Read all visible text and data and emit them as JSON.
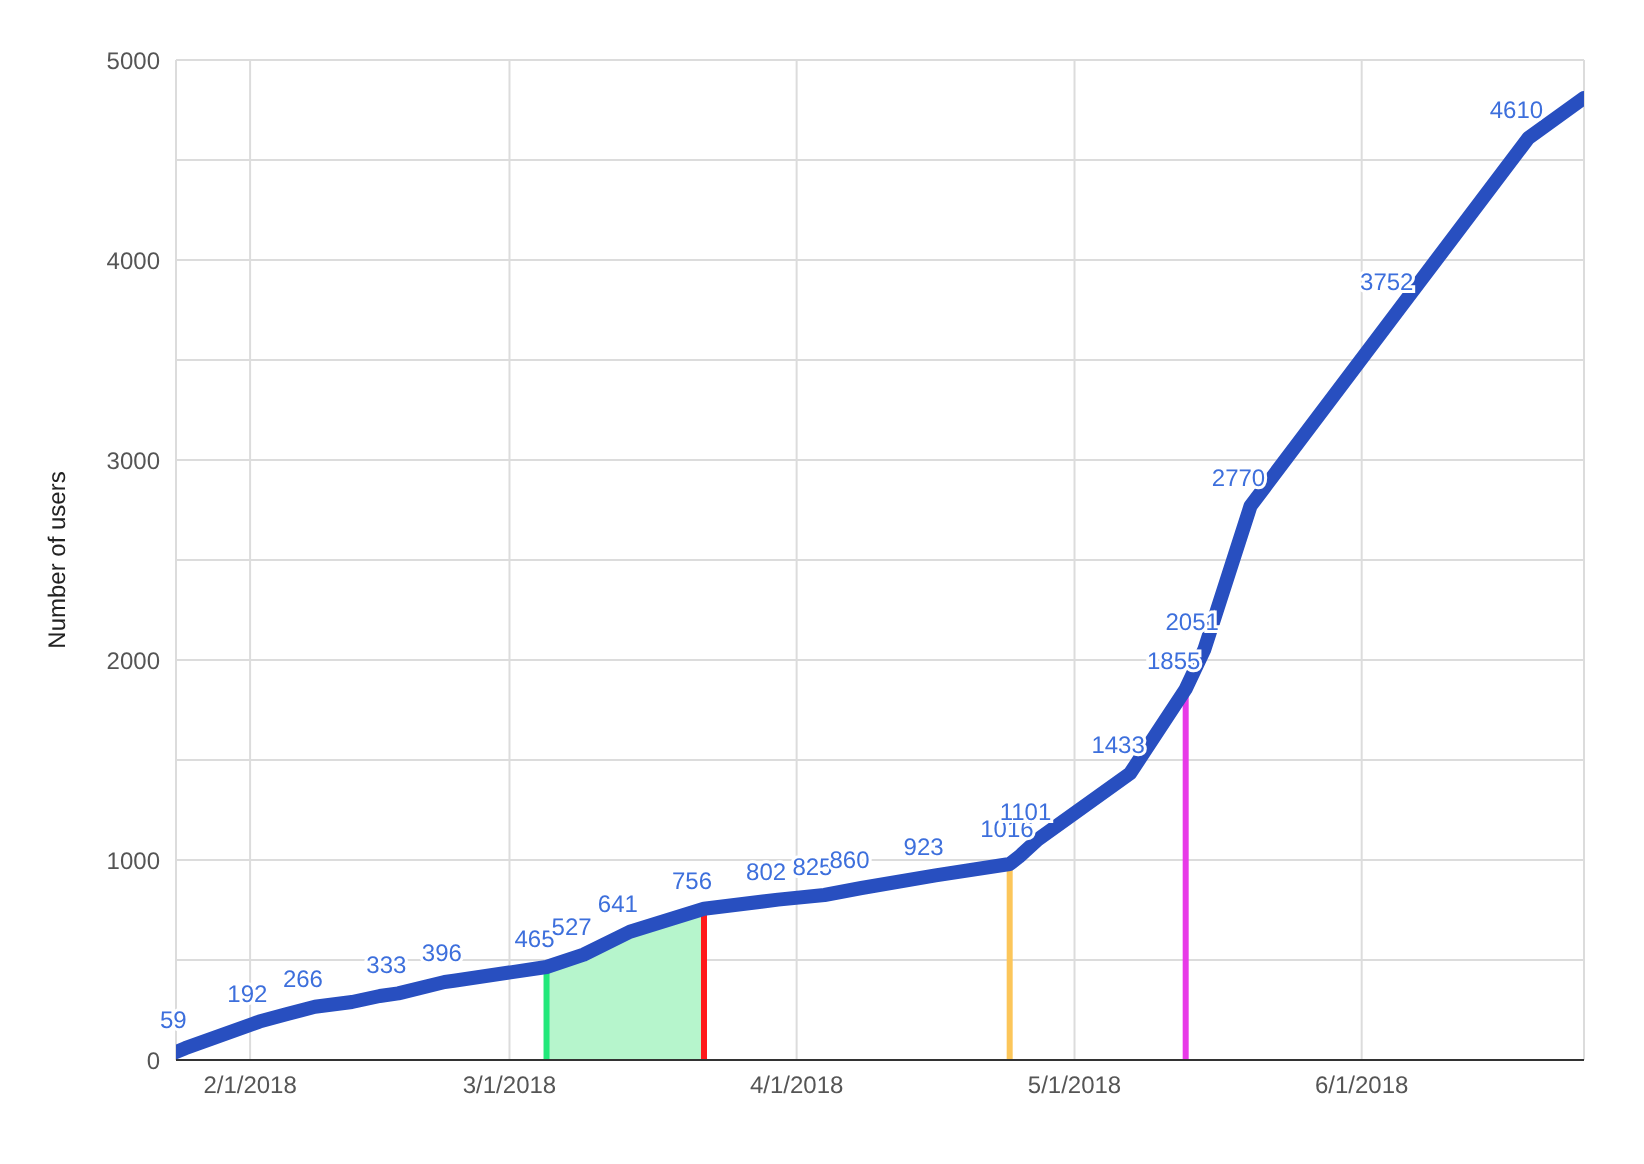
{
  "chart_data": {
    "type": "line",
    "ylabel": "Number of users",
    "x": [
      "2018-01-24",
      "2018-01-25",
      "2018-02-02",
      "2018-02-05",
      "2018-02-08",
      "2018-02-12",
      "2018-02-15",
      "2018-02-17",
      "2018-02-22",
      "2018-02-23",
      "2018-03-05",
      "2018-03-09",
      "2018-03-14",
      "2018-03-22",
      "2018-03-30",
      "2018-04-04",
      "2018-04-08",
      "2018-04-16",
      "2018-04-24",
      "2018-04-25",
      "2018-04-27",
      "2018-05-07",
      "2018-05-13",
      "2018-05-15",
      "2018-05-20",
      "2018-06-05",
      "2018-06-19",
      "2018-06-25"
    ],
    "series": [
      {
        "type": "area",
        "color": "#b6f5cc",
        "x": [
          "2018-03-05",
          "2018-03-09",
          "2018-03-14",
          "2018-03-22"
        ],
        "values": [
          465,
          527,
          641,
          756
        ]
      },
      {
        "color": "#284fc0",
        "values": [
          40,
          59,
          192,
          230,
          266,
          290,
          320,
          333,
          390,
          396,
          465,
          527,
          641,
          756,
          802,
          825,
          860,
          923,
          980,
          1016,
          1101,
          1433,
          1855,
          2051,
          2770,
          3752,
          4610,
          4810
        ],
        "value_labels": [
          null,
          "59",
          "192",
          null,
          "266",
          null,
          null,
          "333",
          null,
          "396",
          "465",
          "527",
          "641",
          "756",
          "802",
          "825",
          "860",
          "923",
          null,
          "1016",
          "1101",
          "1433",
          "1855",
          "2051",
          "2770",
          "3752",
          "4610",
          null
        ]
      }
    ],
    "xlim": [
      "2018-01-24",
      "2018-06-25"
    ],
    "xticks": [
      {
        "value": "2018-02-01",
        "label": "2/1/2018"
      },
      {
        "value": "2018-03-01",
        "label": "3/1/2018"
      },
      {
        "value": "2018-04-01",
        "label": "4/1/2018"
      },
      {
        "value": "2018-05-01",
        "label": "5/1/2018"
      },
      {
        "value": "2018-06-01",
        "label": "6/1/2018"
      }
    ],
    "ylim": [
      0,
      5000
    ],
    "yticks": [
      0,
      {
        "value": 500,
        "label": null
      },
      1000,
      {
        "value": 1500,
        "label": null
      },
      2000,
      {
        "value": 2500,
        "label": null
      },
      3000,
      {
        "value": 3500,
        "label": null
      },
      4000,
      {
        "value": 4500,
        "label": null
      },
      5000
    ],
    "grid": true,
    "legend": false,
    "marker": "none",
    "line_style": "solid",
    "ref_lines": [
      {
        "axis": "x",
        "value": "2018-03-05",
        "color": "#22e87a"
      },
      {
        "axis": "x",
        "value": "2018-03-22",
        "color": "#ff1a1a"
      },
      {
        "axis": "x",
        "value": "2018-04-24",
        "color": "#fcc65a"
      },
      {
        "axis": "x",
        "value": "2018-05-13",
        "color": "#e83ae8"
      }
    ]
  }
}
